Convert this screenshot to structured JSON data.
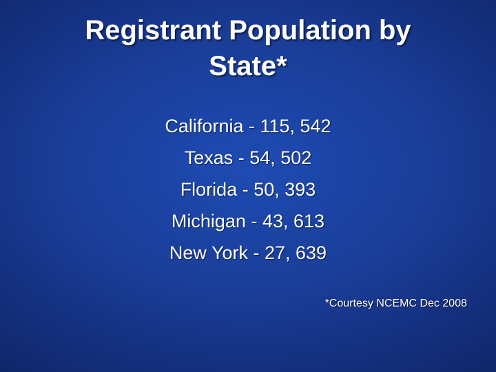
{
  "slide": {
    "title_lines": [
      "Registrant Population by",
      "State*"
    ],
    "items": [
      "California - 115, 542",
      "Texas - 54, 502",
      "Florida - 50, 393",
      "Michigan - 43, 613",
      "New York - 27, 639"
    ],
    "footnote": "*Courtesy NCEMC Dec 2008"
  },
  "colors": {
    "background_center": "#1e4bb3",
    "background_edge": "#0a1c55",
    "text": "#ffffff"
  }
}
